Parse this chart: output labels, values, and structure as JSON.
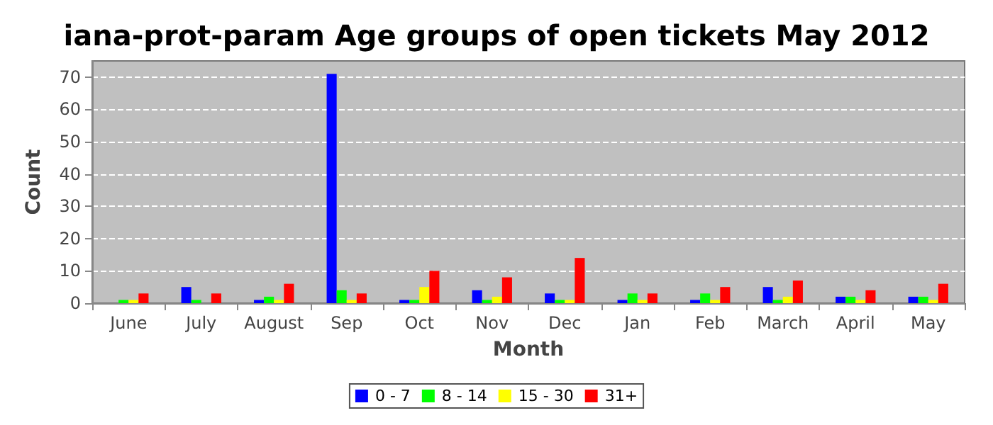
{
  "chart_data": {
    "type": "bar",
    "title": "iana-prot-param Age groups of open tickets May 2012",
    "xlabel": "Month",
    "ylabel": "Count",
    "categories": [
      "June",
      "July",
      "August",
      "Sep",
      "Oct",
      "Nov",
      "Dec",
      "Jan",
      "Feb",
      "March",
      "April",
      "May"
    ],
    "series": [
      {
        "name": "0 - 7",
        "color": "#0000ff",
        "values": [
          0,
          5,
          1,
          71,
          1,
          4,
          3,
          1,
          1,
          5,
          2,
          2
        ]
      },
      {
        "name": "8 - 14",
        "color": "#00ff00",
        "values": [
          1,
          1,
          2,
          4,
          1,
          1,
          1,
          3,
          3,
          1,
          2,
          2
        ]
      },
      {
        "name": "15 - 30",
        "color": "#ffff00",
        "values": [
          1,
          0,
          1,
          1,
          5,
          2,
          1,
          1,
          1,
          2,
          1,
          1
        ]
      },
      {
        "name": "31+",
        "color": "#ff0000",
        "values": [
          3,
          3,
          6,
          3,
          10,
          8,
          14,
          3,
          5,
          7,
          4,
          6
        ]
      }
    ],
    "ylim": [
      0,
      75
    ],
    "yticks": [
      0,
      10,
      20,
      30,
      40,
      50,
      60,
      70
    ],
    "grid": "y",
    "legend": "bottom"
  }
}
